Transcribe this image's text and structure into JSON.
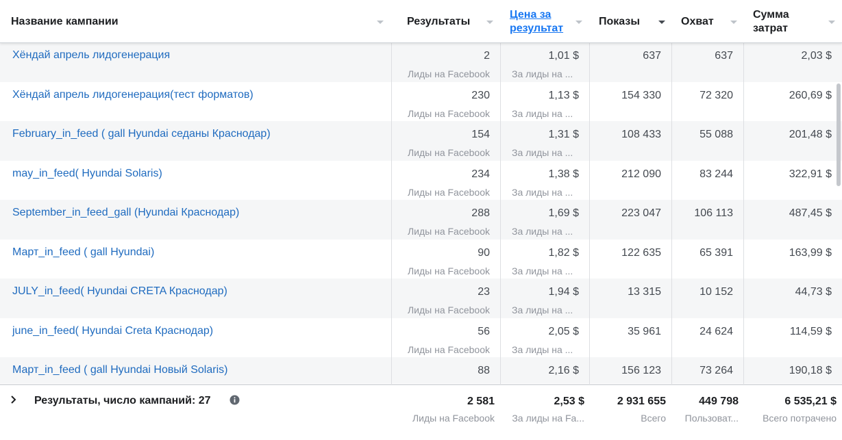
{
  "header": {
    "campaign_name": "Название кампании",
    "results": "Результаты",
    "cost_line1": "Цена за",
    "cost_line2": "результат",
    "impressions": "Показы",
    "reach": "Охват",
    "spent_line1": "Сумма",
    "spent_line2": "затрат"
  },
  "rows": [
    {
      "name": "Хёндай апрель лидогенерация",
      "results": "2",
      "results_sub": "Лиды на Facebook",
      "cost": "1,01 $",
      "cost_sub": "За лиды на ...",
      "impressions": "637",
      "reach": "637",
      "spent": "2,03 $"
    },
    {
      "name": "Хёндай апрель лидогенерация(тест форматов)",
      "results": "230",
      "results_sub": "Лиды на Facebook",
      "cost": "1,13 $",
      "cost_sub": "За лиды на ...",
      "impressions": "154 330",
      "reach": "72 320",
      "spent": "260,69 $"
    },
    {
      "name": "February_in_feed ( gall Hyundai седаны Краснодар)",
      "results": "154",
      "results_sub": "Лиды на Facebook",
      "cost": "1,31 $",
      "cost_sub": "За лиды на ...",
      "impressions": "108 433",
      "reach": "55 088",
      "spent": "201,48 $"
    },
    {
      "name": "may_in_feed( Hyundai Solaris)",
      "results": "234",
      "results_sub": "Лиды на Facebook",
      "cost": "1,38 $",
      "cost_sub": "За лиды на ...",
      "impressions": "212 090",
      "reach": "83 244",
      "spent": "322,91 $"
    },
    {
      "name": "September_in_feed_gall (Hyundai Краснодар)",
      "results": "288",
      "results_sub": "Лиды на Facebook",
      "cost": "1,69 $",
      "cost_sub": "За лиды на ...",
      "impressions": "223 047",
      "reach": "106 113",
      "spent": "487,45 $"
    },
    {
      "name": "Март_in_feed ( gall Hyundai)",
      "results": "90",
      "results_sub": "Лиды на Facebook",
      "cost": "1,82 $",
      "cost_sub": "За лиды на ...",
      "impressions": "122 635",
      "reach": "65 391",
      "spent": "163,99 $"
    },
    {
      "name": "JULY_in_feed( Hyundai CRETA Краснодар)",
      "results": "23",
      "results_sub": "Лиды на Facebook",
      "cost": "1,94 $",
      "cost_sub": "За лиды на ...",
      "impressions": "13 315",
      "reach": "10 152",
      "spent": "44,73 $"
    },
    {
      "name": "june_in_feed( Hyundai Creta Краснодар)",
      "results": "56",
      "results_sub": "Лиды на Facebook",
      "cost": "2,05 $",
      "cost_sub": "За лиды на ...",
      "impressions": "35 961",
      "reach": "24 624",
      "spent": "114,59 $"
    },
    {
      "name": "Март_in_feed ( gall Hyundai Новый Solaris)",
      "results": "88",
      "results_sub": "",
      "cost": "2,16 $",
      "cost_sub": "",
      "impressions": "156 123",
      "reach": "73 264",
      "spent": "190,18 $"
    }
  ],
  "footer": {
    "summary_label": "Результаты, число кампаний: 27",
    "results": "2 581",
    "results_sub": "Лиды на Facebook",
    "cost": "2,53 $",
    "cost_sub": "За лиды на Fa...",
    "impressions": "2 931 655",
    "impressions_sub": "Всего",
    "reach": "449 798",
    "reach_sub": "Пользоват...",
    "spent": "6 535,21 $",
    "spent_sub": "Всего потрачено"
  },
  "colors": {
    "link": "#1f6bbf",
    "active_header": "#1877f2",
    "shaded_row": "#f5f6f7"
  }
}
